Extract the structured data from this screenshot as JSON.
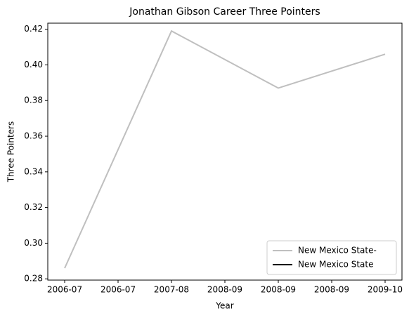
{
  "chart_data": {
    "type": "line",
    "title": "Jonathan Gibson  Career Three Pointers",
    "x_label": "Year",
    "y_label": "Three Pointers",
    "categories": [
      "2006-07",
      "2007-08",
      "2008-09",
      "2009-10"
    ],
    "series": [
      {
        "name": "New Mexico State-",
        "color": "#bfbfbf",
        "values": [
          0.286,
          0.419,
          0.387,
          0.406
        ]
      },
      {
        "name": "New Mexico State",
        "color": "#000000",
        "values": [
          null,
          null,
          null,
          null
        ]
      }
    ],
    "xlim": [
      -0.158,
      3.158
    ],
    "xticks": [
      {
        "value": 0,
        "label": "2006-07"
      },
      {
        "value": 0.5,
        "label": "2006-07"
      },
      {
        "value": 1,
        "label": "2007-08"
      },
      {
        "value": 1.5,
        "label": "2008-09"
      },
      {
        "value": 2,
        "label": "2008-09"
      },
      {
        "value": 2.5,
        "label": "2008-09"
      },
      {
        "value": 3,
        "label": "2009-10"
      }
    ],
    "ylim": [
      0.2793,
      0.4234
    ],
    "yticks": [
      {
        "value": 0.28,
        "label": "0.28"
      },
      {
        "value": 0.3,
        "label": "0.30"
      },
      {
        "value": 0.32,
        "label": "0.32"
      },
      {
        "value": 0.34,
        "label": "0.34"
      },
      {
        "value": 0.36,
        "label": "0.36"
      },
      {
        "value": 0.38,
        "label": "0.38"
      },
      {
        "value": 0.4,
        "label": "0.40"
      },
      {
        "value": 0.42,
        "label": "0.42"
      }
    ],
    "legend": "lower right"
  }
}
